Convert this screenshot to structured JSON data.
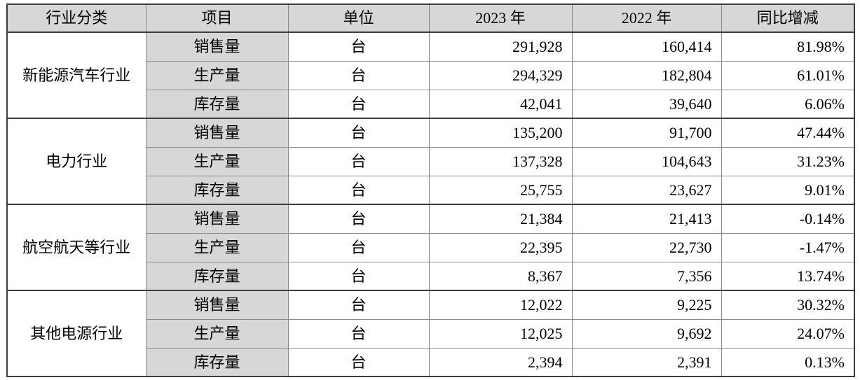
{
  "table": {
    "headers": [
      "行业分类",
      "项目",
      "单位",
      "2023 年",
      "2022 年",
      "同比增减"
    ],
    "groups": [
      {
        "industry": "新能源汽车行业",
        "rows": [
          {
            "item": "销售量",
            "unit": "台",
            "y2023": "291,928",
            "y2022": "160,414",
            "yoy": "81.98%"
          },
          {
            "item": "生产量",
            "unit": "台",
            "y2023": "294,329",
            "y2022": "182,804",
            "yoy": "61.01%"
          },
          {
            "item": "库存量",
            "unit": "台",
            "y2023": "42,041",
            "y2022": "39,640",
            "yoy": "6.06%"
          }
        ]
      },
      {
        "industry": "电力行业",
        "rows": [
          {
            "item": "销售量",
            "unit": "台",
            "y2023": "135,200",
            "y2022": "91,700",
            "yoy": "47.44%"
          },
          {
            "item": "生产量",
            "unit": "台",
            "y2023": "137,328",
            "y2022": "104,643",
            "yoy": "31.23%"
          },
          {
            "item": "库存量",
            "unit": "台",
            "y2023": "25,755",
            "y2022": "23,627",
            "yoy": "9.01%"
          }
        ]
      },
      {
        "industry": "航空航天等行业",
        "rows": [
          {
            "item": "销售量",
            "unit": "台",
            "y2023": "21,384",
            "y2022": "21,413",
            "yoy": "-0.14%"
          },
          {
            "item": "生产量",
            "unit": "台",
            "y2023": "22,395",
            "y2022": "22,730",
            "yoy": "-1.47%"
          },
          {
            "item": "库存量",
            "unit": "台",
            "y2023": "8,367",
            "y2022": "7,356",
            "yoy": "13.74%"
          }
        ]
      },
      {
        "industry": "其他电源行业",
        "rows": [
          {
            "item": "销售量",
            "unit": "台",
            "y2023": "12,022",
            "y2022": "9,225",
            "yoy": "30.32%"
          },
          {
            "item": "生产量",
            "unit": "台",
            "y2023": "12,025",
            "y2022": "9,692",
            "yoy": "24.07%"
          },
          {
            "item": "库存量",
            "unit": "台",
            "y2023": "2,394",
            "y2022": "2,391",
            "yoy": "0.13%"
          }
        ]
      }
    ]
  },
  "colors": {
    "header_bg": "#d7d7d7",
    "item_bg": "#d7d7d7",
    "border_dark": "#3d3d3d",
    "border_light": "#8a8a8a",
    "text_color": "#000000",
    "page_bg": "#ffffff"
  }
}
